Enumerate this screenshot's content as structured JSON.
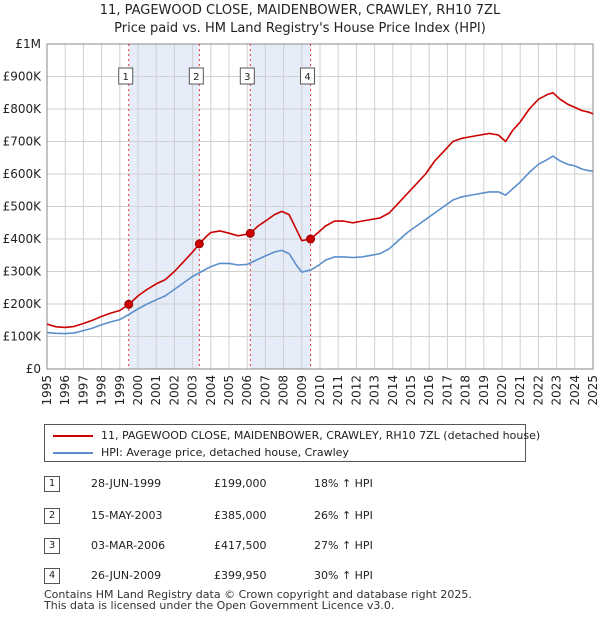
{
  "chart_data": {
    "type": "line",
    "title": "11, PAGEWOOD CLOSE, MAIDENBOWER, CRAWLEY, RH10 7ZL",
    "subtitle": "Price paid vs. HM Land Registry's House Price Index (HPI)",
    "xlim": [
      1995,
      2025
    ],
    "ylim": [
      0,
      1000000
    ],
    "y_ticks": [
      {
        "value": 0,
        "label": "£0"
      },
      {
        "value": 100000,
        "label": "£100K"
      },
      {
        "value": 200000,
        "label": "£200K"
      },
      {
        "value": 300000,
        "label": "£300K"
      },
      {
        "value": 400000,
        "label": "£400K"
      },
      {
        "value": 500000,
        "label": "£500K"
      },
      {
        "value": 600000,
        "label": "£600K"
      },
      {
        "value": 700000,
        "label": "£700K"
      },
      {
        "value": 800000,
        "label": "£800K"
      },
      {
        "value": 900000,
        "label": "£900K"
      },
      {
        "value": 1000000,
        "label": "£1M"
      }
    ],
    "x_ticks": [
      "1995",
      "1996",
      "1997",
      "1998",
      "1999",
      "2000",
      "2001",
      "2002",
      "2003",
      "2004",
      "2005",
      "2006",
      "2007",
      "2008",
      "2009",
      "2010",
      "2011",
      "2012",
      "2013",
      "2014",
      "2015",
      "2016",
      "2017",
      "2018",
      "2019",
      "2020",
      "2021",
      "2022",
      "2023",
      "2024",
      "2025"
    ],
    "grid": true,
    "series": [
      {
        "name": "11, PAGEWOOD CLOSE, MAIDENBOWER, CRAWLEY, RH10 7ZL (detached house)",
        "color": "#cc0000",
        "points": [
          [
            1995.0,
            138000
          ],
          [
            1995.5,
            130000
          ],
          [
            1996.0,
            128000
          ],
          [
            1996.5,
            131000
          ],
          [
            1997.0,
            140000
          ],
          [
            1997.5,
            150000
          ],
          [
            1998.0,
            162000
          ],
          [
            1998.5,
            172000
          ],
          [
            1999.0,
            180000
          ],
          [
            1999.5,
            199000
          ],
          [
            2000.0,
            225000
          ],
          [
            2000.5,
            245000
          ],
          [
            2001.0,
            262000
          ],
          [
            2001.5,
            275000
          ],
          [
            2002.0,
            300000
          ],
          [
            2002.5,
            330000
          ],
          [
            2003.0,
            360000
          ],
          [
            2003.37,
            385000
          ],
          [
            2003.7,
            405000
          ],
          [
            2004.0,
            420000
          ],
          [
            2004.5,
            425000
          ],
          [
            2005.0,
            418000
          ],
          [
            2005.5,
            410000
          ],
          [
            2006.0,
            415000
          ],
          [
            2006.17,
            417500
          ],
          [
            2006.6,
            440000
          ],
          [
            2007.0,
            455000
          ],
          [
            2007.5,
            475000
          ],
          [
            2007.9,
            485000
          ],
          [
            2008.3,
            475000
          ],
          [
            2008.7,
            430000
          ],
          [
            2009.0,
            395000
          ],
          [
            2009.48,
            399950
          ],
          [
            2009.9,
            420000
          ],
          [
            2010.3,
            440000
          ],
          [
            2010.8,
            455000
          ],
          [
            2011.3,
            455000
          ],
          [
            2011.8,
            450000
          ],
          [
            2012.3,
            455000
          ],
          [
            2012.8,
            460000
          ],
          [
            2013.3,
            465000
          ],
          [
            2013.8,
            480000
          ],
          [
            2014.3,
            510000
          ],
          [
            2014.8,
            540000
          ],
          [
            2015.3,
            570000
          ],
          [
            2015.8,
            600000
          ],
          [
            2016.3,
            640000
          ],
          [
            2016.8,
            670000
          ],
          [
            2017.3,
            700000
          ],
          [
            2017.8,
            710000
          ],
          [
            2018.3,
            715000
          ],
          [
            2018.8,
            720000
          ],
          [
            2019.3,
            725000
          ],
          [
            2019.8,
            720000
          ],
          [
            2020.2,
            700000
          ],
          [
            2020.6,
            735000
          ],
          [
            2021.0,
            760000
          ],
          [
            2021.5,
            800000
          ],
          [
            2022.0,
            830000
          ],
          [
            2022.5,
            845000
          ],
          [
            2022.8,
            850000
          ],
          [
            2023.2,
            830000
          ],
          [
            2023.6,
            815000
          ],
          [
            2024.0,
            805000
          ],
          [
            2024.4,
            795000
          ],
          [
            2024.8,
            790000
          ],
          [
            2025.0,
            785000
          ]
        ]
      },
      {
        "name": "HPI: Average price, detached house, Crawley",
        "color": "#5a8fcc",
        "points": [
          [
            1995.0,
            112000
          ],
          [
            1995.5,
            110000
          ],
          [
            1996.0,
            109000
          ],
          [
            1996.5,
            111000
          ],
          [
            1997.0,
            118000
          ],
          [
            1997.5,
            126000
          ],
          [
            1998.0,
            136000
          ],
          [
            1998.5,
            145000
          ],
          [
            1999.0,
            152000
          ],
          [
            1999.5,
            168000
          ],
          [
            2000.0,
            185000
          ],
          [
            2000.5,
            200000
          ],
          [
            2001.0,
            213000
          ],
          [
            2001.5,
            225000
          ],
          [
            2002.0,
            245000
          ],
          [
            2002.5,
            265000
          ],
          [
            2003.0,
            285000
          ],
          [
            2003.5,
            300000
          ],
          [
            2004.0,
            315000
          ],
          [
            2004.5,
            325000
          ],
          [
            2005.0,
            325000
          ],
          [
            2005.5,
            320000
          ],
          [
            2006.0,
            322000
          ],
          [
            2006.5,
            335000
          ],
          [
            2007.0,
            348000
          ],
          [
            2007.5,
            360000
          ],
          [
            2007.9,
            365000
          ],
          [
            2008.3,
            355000
          ],
          [
            2008.7,
            320000
          ],
          [
            2009.0,
            298000
          ],
          [
            2009.5,
            305000
          ],
          [
            2009.9,
            318000
          ],
          [
            2010.3,
            335000
          ],
          [
            2010.8,
            345000
          ],
          [
            2011.3,
            345000
          ],
          [
            2011.8,
            343000
          ],
          [
            2012.3,
            345000
          ],
          [
            2012.8,
            350000
          ],
          [
            2013.3,
            355000
          ],
          [
            2013.8,
            370000
          ],
          [
            2014.3,
            395000
          ],
          [
            2014.8,
            420000
          ],
          [
            2015.3,
            440000
          ],
          [
            2015.8,
            460000
          ],
          [
            2016.3,
            480000
          ],
          [
            2016.8,
            500000
          ],
          [
            2017.3,
            520000
          ],
          [
            2017.8,
            530000
          ],
          [
            2018.3,
            535000
          ],
          [
            2018.8,
            540000
          ],
          [
            2019.3,
            545000
          ],
          [
            2019.8,
            545000
          ],
          [
            2020.2,
            535000
          ],
          [
            2020.6,
            555000
          ],
          [
            2021.0,
            575000
          ],
          [
            2021.5,
            605000
          ],
          [
            2022.0,
            630000
          ],
          [
            2022.5,
            645000
          ],
          [
            2022.8,
            655000
          ],
          [
            2023.2,
            640000
          ],
          [
            2023.6,
            630000
          ],
          [
            2024.0,
            625000
          ],
          [
            2024.4,
            615000
          ],
          [
            2024.8,
            610000
          ],
          [
            2025.0,
            610000
          ]
        ]
      }
    ],
    "sales": [
      {
        "n": "1",
        "x": 1999.49,
        "price": 199000
      },
      {
        "n": "2",
        "x": 2003.37,
        "price": 385000
      },
      {
        "n": "3",
        "x": 2006.17,
        "price": 417500
      },
      {
        "n": "4",
        "x": 2009.48,
        "price": 399950
      }
    ],
    "shaded_spans": [
      [
        1999.49,
        2003.37
      ],
      [
        2006.17,
        2009.48
      ]
    ]
  },
  "legend": {
    "property_label": "11, PAGEWOOD CLOSE, MAIDENBOWER, CRAWLEY, RH10 7ZL (detached house)",
    "hpi_label": "HPI: Average price, detached house, Crawley",
    "property_color": "#cc0000",
    "hpi_color": "#5a8fcc"
  },
  "transactions": [
    {
      "num": "1",
      "date": "28-JUN-1999",
      "price": "£199,000",
      "hpi": "18% ↑ HPI"
    },
    {
      "num": "2",
      "date": "15-MAY-2003",
      "price": "£385,000",
      "hpi": "26% ↑ HPI"
    },
    {
      "num": "3",
      "date": "03-MAR-2006",
      "price": "£417,500",
      "hpi": "27% ↑ HPI"
    },
    {
      "num": "4",
      "date": "26-JUN-2009",
      "price": "£399,950",
      "hpi": "30% ↑ HPI"
    }
  ],
  "footer": {
    "line1": "Contains HM Land Registry data © Crown copyright and database right 2025.",
    "line2": "This data is licensed under the Open Government Licence v3.0."
  }
}
